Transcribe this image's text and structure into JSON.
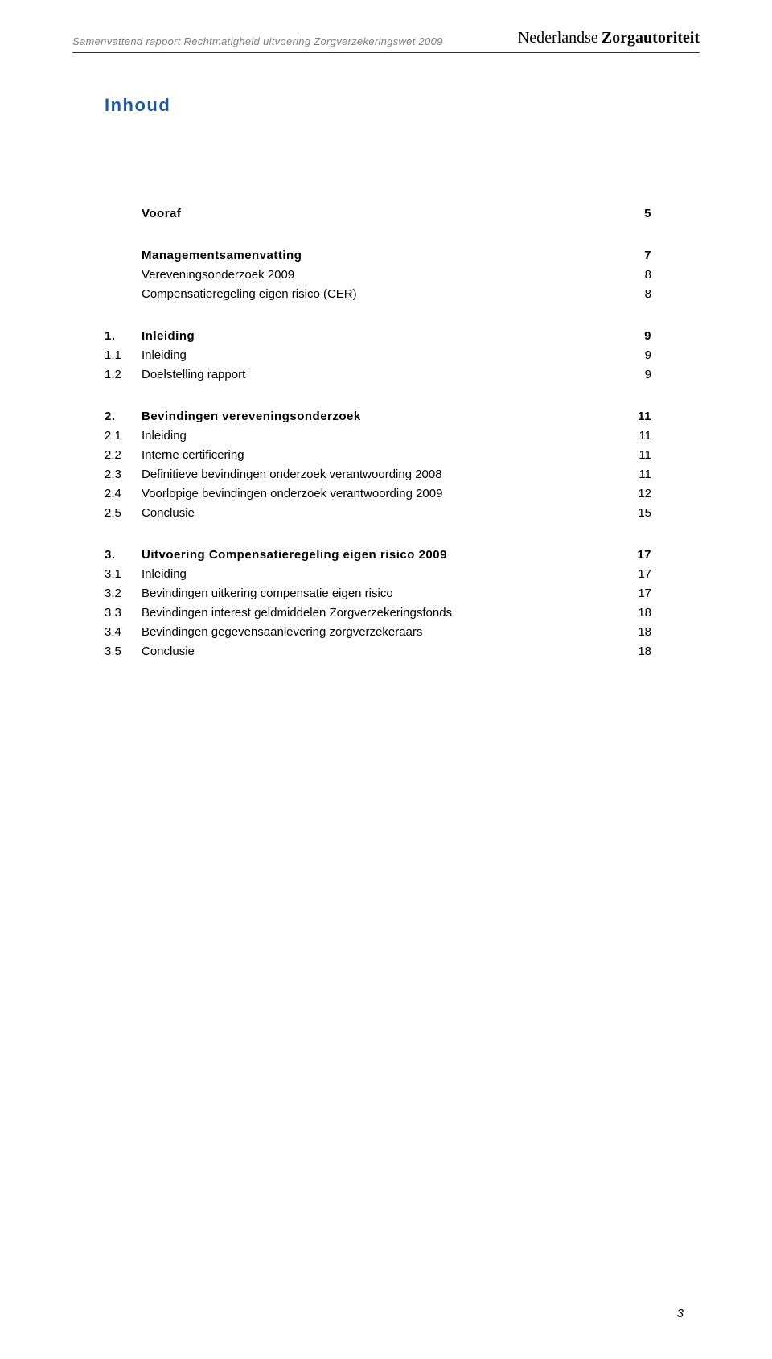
{
  "header": {
    "left": "Samenvattend rapport Rechtmatigheid uitvoering Zorgverzekeringswet 2009",
    "brand_main": "Nederlandse",
    "brand_sub": "Zorgautoriteit"
  },
  "title": "Inhoud",
  "page_number": "3",
  "sections": [
    {
      "rows": [
        {
          "num": "",
          "label": "Vooraf",
          "page": "5",
          "bold": true
        }
      ]
    },
    {
      "rows": [
        {
          "num": "",
          "label": "Managementsamenvatting",
          "page": "7",
          "bold": true
        },
        {
          "num": "",
          "label": "Vereveningsonderzoek 2009",
          "page": "8",
          "bold": false
        },
        {
          "num": "",
          "label": "Compensatieregeling eigen risico (CER)",
          "page": "8",
          "bold": false
        }
      ]
    },
    {
      "rows": [
        {
          "num": "1.",
          "label": "Inleiding",
          "page": "9",
          "bold": true
        },
        {
          "num": "1.1",
          "label": "Inleiding",
          "page": "9",
          "bold": false
        },
        {
          "num": "1.2",
          "label": "Doelstelling rapport",
          "page": "9",
          "bold": false
        }
      ]
    },
    {
      "rows": [
        {
          "num": "2.",
          "label": "Bevindingen vereveningsonderzoek",
          "page": "11",
          "bold": true
        },
        {
          "num": "2.1",
          "label": "Inleiding",
          "page": "11",
          "bold": false
        },
        {
          "num": "2.2",
          "label": "Interne certificering",
          "page": "11",
          "bold": false
        },
        {
          "num": "2.3",
          "label": "Definitieve bevindingen onderzoek verantwoording 2008",
          "page": "11",
          "bold": false
        },
        {
          "num": "2.4",
          "label": "Voorlopige bevindingen onderzoek verantwoording 2009",
          "page": "12",
          "bold": false
        },
        {
          "num": "2.5",
          "label": "Conclusie",
          "page": "15",
          "bold": false
        }
      ]
    },
    {
      "rows": [
        {
          "num": "3.",
          "label": "Uitvoering Compensatieregeling eigen risico 2009",
          "page": "17",
          "bold": true
        },
        {
          "num": "3.1",
          "label": "Inleiding",
          "page": "17",
          "bold": false
        },
        {
          "num": "3.2",
          "label": "Bevindingen uitkering compensatie eigen risico",
          "page": "17",
          "bold": false
        },
        {
          "num": "3.3",
          "label": "Bevindingen interest geldmiddelen Zorgverzekeringsfonds",
          "page": "18",
          "bold": false
        },
        {
          "num": "3.4",
          "label": "Bevindingen gegevensaanlevering zorgverzekeraars",
          "page": "18",
          "bold": false
        },
        {
          "num": "3.5",
          "label": "Conclusie",
          "page": "18",
          "bold": false
        }
      ]
    }
  ]
}
